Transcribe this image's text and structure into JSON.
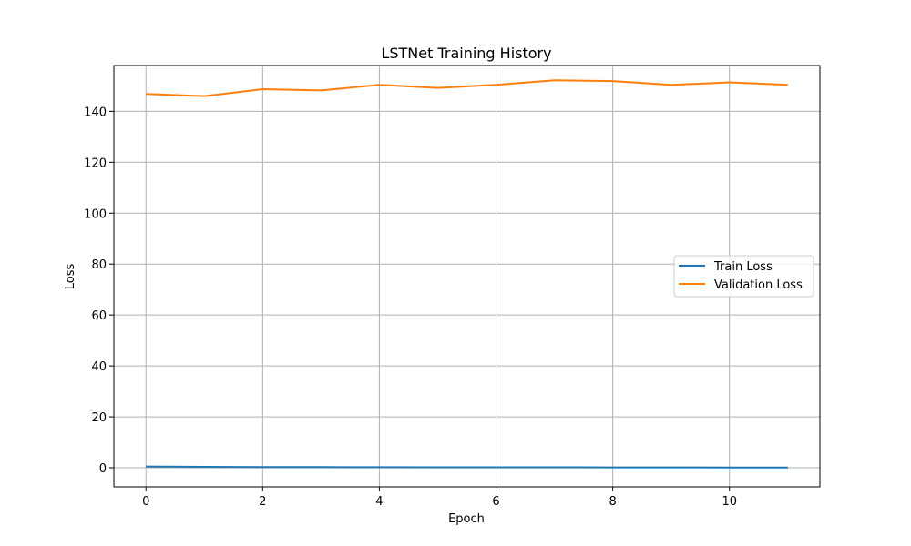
{
  "chart_data": {
    "type": "line",
    "title": "LSTNet Training History",
    "xlabel": "Epoch",
    "ylabel": "Loss",
    "x": [
      0,
      1,
      2,
      3,
      4,
      5,
      6,
      7,
      8,
      9,
      10,
      11
    ],
    "xlim": [
      -0.55,
      11.55
    ],
    "ylim": [
      -7.5,
      158
    ],
    "xticks": [
      0,
      2,
      4,
      6,
      8,
      10
    ],
    "yticks": [
      0,
      20,
      40,
      60,
      80,
      100,
      120,
      140
    ],
    "grid": true,
    "legend_position": "center-right",
    "series": [
      {
        "name": "Train Loss",
        "color": "#1f77b4",
        "values": [
          0.5,
          0.35,
          0.3,
          0.25,
          0.22,
          0.2,
          0.18,
          0.17,
          0.15,
          0.14,
          0.12,
          0.1
        ]
      },
      {
        "name": "Validation Loss",
        "color": "#ff7f0e",
        "values": [
          146.8,
          146.0,
          148.7,
          148.2,
          150.4,
          149.2,
          150.4,
          152.2,
          151.9,
          150.4,
          151.4,
          150.4
        ]
      }
    ]
  }
}
